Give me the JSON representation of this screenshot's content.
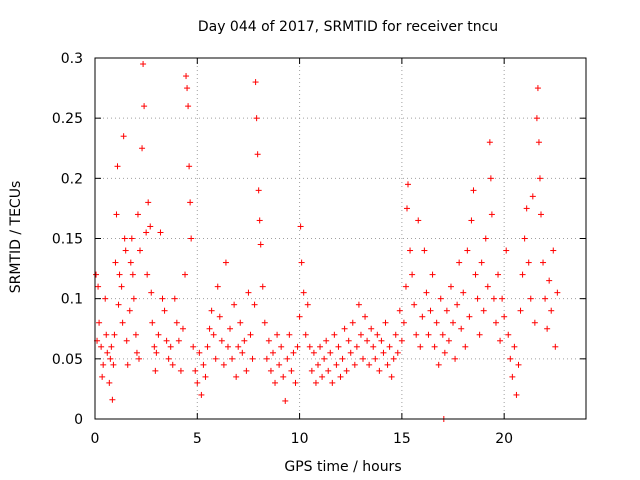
{
  "chart_data": {
    "type": "scatter",
    "title": "Day 044 of 2017, SRMTID for receiver tncu",
    "xlabel": "GPS time / hours",
    "ylabel": "SRMTID / TECUs",
    "xlim": [
      0,
      24
    ],
    "ylim": [
      0,
      0.3
    ],
    "xticks": [
      0,
      5,
      10,
      15,
      20
    ],
    "xtick_labels": [
      "0",
      "5",
      "10",
      "15",
      "20"
    ],
    "yticks": [
      0,
      0.05,
      0.1,
      0.15,
      0.2,
      0.25,
      0.3
    ],
    "ytick_labels": [
      "0",
      "0.05",
      "0.1",
      "0.15",
      "0.2",
      "0.25",
      "0.3"
    ],
    "grid": true,
    "marker": "+",
    "series": [
      {
        "color": "#ff0000",
        "points": [
          [
            0.05,
            0.12
          ],
          [
            0.1,
            0.065
          ],
          [
            0.15,
            0.11
          ],
          [
            0.2,
            0.08
          ],
          [
            0.3,
            0.06
          ],
          [
            0.35,
            0.035
          ],
          [
            0.4,
            0.045
          ],
          [
            0.5,
            0.1
          ],
          [
            0.55,
            0.07
          ],
          [
            0.6,
            0.055
          ],
          [
            0.7,
            0.03
          ],
          [
            0.75,
            0.05
          ],
          [
            0.8,
            0.06
          ],
          [
            0.85,
            0.016
          ],
          [
            0.9,
            0.045
          ],
          [
            0.95,
            0.07
          ],
          [
            1.0,
            0.13
          ],
          [
            1.05,
            0.17
          ],
          [
            1.1,
            0.21
          ],
          [
            1.15,
            0.095
          ],
          [
            1.2,
            0.12
          ],
          [
            1.3,
            0.11
          ],
          [
            1.35,
            0.08
          ],
          [
            1.4,
            0.235
          ],
          [
            1.45,
            0.15
          ],
          [
            1.5,
            0.14
          ],
          [
            1.55,
            0.065
          ],
          [
            1.6,
            0.045
          ],
          [
            1.7,
            0.09
          ],
          [
            1.75,
            0.13
          ],
          [
            1.8,
            0.15
          ],
          [
            1.85,
            0.12
          ],
          [
            1.9,
            0.1
          ],
          [
            2.0,
            0.07
          ],
          [
            2.05,
            0.055
          ],
          [
            2.1,
            0.17
          ],
          [
            2.15,
            0.05
          ],
          [
            2.2,
            0.14
          ],
          [
            2.3,
            0.225
          ],
          [
            2.35,
            0.295
          ],
          [
            2.4,
            0.26
          ],
          [
            2.5,
            0.155
          ],
          [
            2.55,
            0.12
          ],
          [
            2.6,
            0.18
          ],
          [
            2.7,
            0.16
          ],
          [
            2.75,
            0.105
          ],
          [
            2.8,
            0.08
          ],
          [
            2.9,
            0.06
          ],
          [
            2.95,
            0.04
          ],
          [
            3.0,
            0.055
          ],
          [
            3.1,
            0.07
          ],
          [
            3.2,
            0.155
          ],
          [
            3.3,
            0.1
          ],
          [
            3.4,
            0.09
          ],
          [
            3.5,
            0.065
          ],
          [
            3.6,
            0.05
          ],
          [
            3.7,
            0.06
          ],
          [
            3.8,
            0.045
          ],
          [
            3.9,
            0.1
          ],
          [
            4.0,
            0.08
          ],
          [
            4.1,
            0.065
          ],
          [
            4.2,
            0.04
          ],
          [
            4.3,
            0.075
          ],
          [
            4.4,
            0.12
          ],
          [
            4.45,
            0.285
          ],
          [
            4.5,
            0.275
          ],
          [
            4.55,
            0.26
          ],
          [
            4.6,
            0.21
          ],
          [
            4.65,
            0.18
          ],
          [
            4.7,
            0.15
          ],
          [
            4.8,
            0.06
          ],
          [
            4.9,
            0.04
          ],
          [
            5.0,
            0.03
          ],
          [
            5.1,
            0.055
          ],
          [
            5.2,
            0.02
          ],
          [
            5.3,
            0.045
          ],
          [
            5.4,
            0.035
          ],
          [
            5.5,
            0.06
          ],
          [
            5.6,
            0.075
          ],
          [
            5.7,
            0.09
          ],
          [
            5.8,
            0.07
          ],
          [
            5.9,
            0.05
          ],
          [
            6.0,
            0.11
          ],
          [
            6.1,
            0.085
          ],
          [
            6.2,
            0.065
          ],
          [
            6.3,
            0.045
          ],
          [
            6.4,
            0.13
          ],
          [
            6.5,
            0.06
          ],
          [
            6.6,
            0.075
          ],
          [
            6.7,
            0.05
          ],
          [
            6.8,
            0.095
          ],
          [
            6.9,
            0.035
          ],
          [
            7.0,
            0.06
          ],
          [
            7.1,
            0.08
          ],
          [
            7.2,
            0.055
          ],
          [
            7.3,
            0.065
          ],
          [
            7.4,
            0.04
          ],
          [
            7.5,
            0.105
          ],
          [
            7.6,
            0.07
          ],
          [
            7.7,
            0.05
          ],
          [
            7.8,
            0.095
          ],
          [
            7.85,
            0.28
          ],
          [
            7.9,
            0.25
          ],
          [
            7.95,
            0.22
          ],
          [
            8.0,
            0.19
          ],
          [
            8.05,
            0.165
          ],
          [
            8.1,
            0.145
          ],
          [
            8.2,
            0.11
          ],
          [
            8.3,
            0.08
          ],
          [
            8.4,
            0.05
          ],
          [
            8.5,
            0.065
          ],
          [
            8.6,
            0.04
          ],
          [
            8.7,
            0.055
          ],
          [
            8.8,
            0.03
          ],
          [
            8.9,
            0.07
          ],
          [
            9.0,
            0.045
          ],
          [
            9.1,
            0.06
          ],
          [
            9.2,
            0.035
          ],
          [
            9.3,
            0.015
          ],
          [
            9.4,
            0.05
          ],
          [
            9.5,
            0.07
          ],
          [
            9.6,
            0.04
          ],
          [
            9.7,
            0.055
          ],
          [
            9.8,
            0.03
          ],
          [
            9.9,
            0.06
          ],
          [
            10.0,
            0.085
          ],
          [
            10.05,
            0.16
          ],
          [
            10.1,
            0.13
          ],
          [
            10.2,
            0.105
          ],
          [
            10.3,
            0.07
          ],
          [
            10.4,
            0.095
          ],
          [
            10.5,
            0.06
          ],
          [
            10.6,
            0.04
          ],
          [
            10.7,
            0.055
          ],
          [
            10.8,
            0.03
          ],
          [
            10.9,
            0.045
          ],
          [
            11.0,
            0.06
          ],
          [
            11.1,
            0.035
          ],
          [
            11.2,
            0.05
          ],
          [
            11.3,
            0.065
          ],
          [
            11.4,
            0.04
          ],
          [
            11.5,
            0.055
          ],
          [
            11.6,
            0.03
          ],
          [
            11.7,
            0.07
          ],
          [
            11.8,
            0.045
          ],
          [
            11.9,
            0.06
          ],
          [
            12.0,
            0.035
          ],
          [
            12.1,
            0.05
          ],
          [
            12.2,
            0.075
          ],
          [
            12.3,
            0.04
          ],
          [
            12.4,
            0.065
          ],
          [
            12.5,
            0.055
          ],
          [
            12.6,
            0.08
          ],
          [
            12.7,
            0.045
          ],
          [
            12.8,
            0.06
          ],
          [
            12.9,
            0.095
          ],
          [
            13.0,
            0.07
          ],
          [
            13.1,
            0.05
          ],
          [
            13.2,
            0.085
          ],
          [
            13.3,
            0.065
          ],
          [
            13.4,
            0.045
          ],
          [
            13.5,
            0.075
          ],
          [
            13.6,
            0.06
          ],
          [
            13.7,
            0.05
          ],
          [
            13.8,
            0.07
          ],
          [
            13.9,
            0.04
          ],
          [
            14.0,
            0.065
          ],
          [
            14.1,
            0.055
          ],
          [
            14.2,
            0.08
          ],
          [
            14.3,
            0.045
          ],
          [
            14.4,
            0.06
          ],
          [
            14.5,
            0.035
          ],
          [
            14.6,
            0.05
          ],
          [
            14.7,
            0.07
          ],
          [
            14.8,
            0.055
          ],
          [
            14.9,
            0.09
          ],
          [
            15.0,
            0.065
          ],
          [
            15.1,
            0.08
          ],
          [
            15.2,
            0.11
          ],
          [
            15.25,
            0.175
          ],
          [
            15.3,
            0.195
          ],
          [
            15.4,
            0.14
          ],
          [
            15.5,
            0.12
          ],
          [
            15.6,
            0.095
          ],
          [
            15.7,
            0.07
          ],
          [
            15.8,
            0.165
          ],
          [
            15.9,
            0.06
          ],
          [
            16.0,
            0.085
          ],
          [
            16.1,
            0.14
          ],
          [
            16.2,
            0.105
          ],
          [
            16.3,
            0.07
          ],
          [
            16.4,
            0.09
          ],
          [
            16.5,
            0.12
          ],
          [
            16.6,
            0.06
          ],
          [
            16.7,
            0.08
          ],
          [
            16.8,
            0.045
          ],
          [
            16.9,
            0.1
          ],
          [
            17.0,
            0.07
          ],
          [
            17.05,
            0.0
          ],
          [
            17.1,
            0.055
          ],
          [
            17.2,
            0.09
          ],
          [
            17.3,
            0.065
          ],
          [
            17.4,
            0.11
          ],
          [
            17.5,
            0.08
          ],
          [
            17.6,
            0.05
          ],
          [
            17.7,
            0.095
          ],
          [
            17.8,
            0.13
          ],
          [
            17.9,
            0.075
          ],
          [
            18.0,
            0.105
          ],
          [
            18.1,
            0.06
          ],
          [
            18.2,
            0.14
          ],
          [
            18.3,
            0.085
          ],
          [
            18.4,
            0.165
          ],
          [
            18.5,
            0.19
          ],
          [
            18.6,
            0.12
          ],
          [
            18.7,
            0.1
          ],
          [
            18.8,
            0.07
          ],
          [
            18.9,
            0.13
          ],
          [
            19.0,
            0.09
          ],
          [
            19.1,
            0.15
          ],
          [
            19.2,
            0.11
          ],
          [
            19.3,
            0.23
          ],
          [
            19.35,
            0.2
          ],
          [
            19.4,
            0.17
          ],
          [
            19.5,
            0.1
          ],
          [
            19.6,
            0.08
          ],
          [
            19.7,
            0.12
          ],
          [
            19.8,
            0.065
          ],
          [
            19.9,
            0.1
          ],
          [
            20.0,
            0.085
          ],
          [
            20.1,
            0.14
          ],
          [
            20.2,
            0.07
          ],
          [
            20.3,
            0.05
          ],
          [
            20.4,
            0.035
          ],
          [
            20.5,
            0.06
          ],
          [
            20.6,
            0.02
          ],
          [
            20.7,
            0.045
          ],
          [
            20.8,
            0.09
          ],
          [
            20.9,
            0.12
          ],
          [
            21.0,
            0.15
          ],
          [
            21.1,
            0.175
          ],
          [
            21.2,
            0.13
          ],
          [
            21.3,
            0.1
          ],
          [
            21.4,
            0.185
          ],
          [
            21.5,
            0.08
          ],
          [
            21.6,
            0.25
          ],
          [
            21.65,
            0.275
          ],
          [
            21.7,
            0.23
          ],
          [
            21.75,
            0.2
          ],
          [
            21.8,
            0.17
          ],
          [
            21.9,
            0.13
          ],
          [
            22.0,
            0.1
          ],
          [
            22.1,
            0.075
          ],
          [
            22.2,
            0.115
          ],
          [
            22.3,
            0.09
          ],
          [
            22.4,
            0.14
          ],
          [
            22.5,
            0.06
          ],
          [
            22.6,
            0.105
          ]
        ]
      }
    ]
  }
}
